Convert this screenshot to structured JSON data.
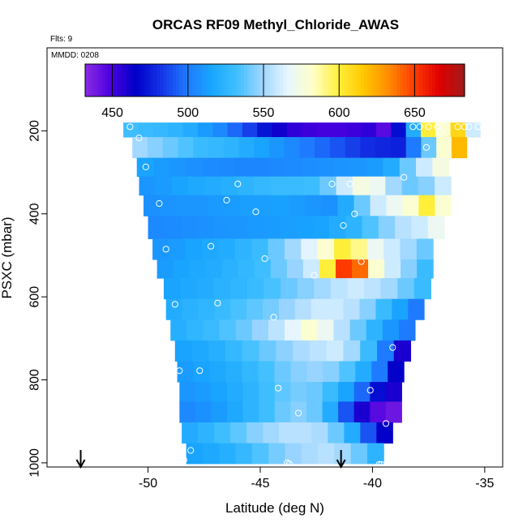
{
  "chart_data": {
    "type": "heatmap",
    "title": "ORCAS RF09 Methyl_Chloride_AWAS",
    "flts_note": "Flts: 9",
    "date_note": "MMDD: 0208",
    "xlabel": "Latitude (deg N)",
    "ylabel": "PSXC (mbar)",
    "xlim": [
      -54.5,
      -34.2
    ],
    "ylim": [
      1010,
      0
    ],
    "x_ticks": [
      -50,
      -45,
      -40,
      -35
    ],
    "x_tick_labels": [
      "-50",
      "-45",
      "-40",
      "-35"
    ],
    "y_ticks": [
      200,
      400,
      600,
      800,
      1000
    ],
    "y_tick_labels": [
      "200",
      "400",
      "600",
      "800",
      "1000"
    ],
    "colorbar": {
      "range": [
        432,
        683
      ],
      "ticks": [
        450,
        500,
        550,
        600,
        650
      ],
      "tick_labels": [
        "450",
        "500",
        "550",
        "600",
        "650"
      ],
      "colors": [
        "#8a2be2",
        "#4b00e0",
        "#0000c8",
        "#1433e6",
        "#1e78ff",
        "#19a6ff",
        "#3fbfff",
        "#9fd6ff",
        "#e6f6ff",
        "#ffffc8",
        "#fff03c",
        "#ffc800",
        "#ff8c00",
        "#ff3c00",
        "#e00000",
        "#a01a1a"
      ]
    },
    "layer_rows": [
      {
        "p": 190,
        "x0": -51.1,
        "x1": -35.2,
        "v": [
          532,
          530,
          528,
          525,
          520,
          512,
          505,
          495,
          485,
          472,
          462,
          455,
          452,
          450,
          450,
          452,
          455,
          445,
          470,
          520,
          600,
          580,
          610,
          560
        ]
      },
      {
        "p": 240,
        "x0": -50.7,
        "x1": -35.8,
        "v": [
          550,
          545,
          540,
          535,
          530,
          528,
          525,
          520,
          515,
          510,
          505,
          500,
          495,
          490,
          485,
          480,
          478,
          476,
          500,
          540,
          580,
          620
        ]
      },
      {
        "p": 290,
        "x0": -50.5,
        "x1": -36.6,
        "v": [
          515,
          512,
          510,
          508,
          506,
          505,
          504,
          504,
          505,
          506,
          507,
          508,
          509,
          510,
          512,
          520,
          540,
          560,
          575
        ]
      },
      {
        "p": 330,
        "x0": -50.4,
        "x1": -36.5,
        "v": [
          510,
          512,
          515,
          518,
          520,
          522,
          525,
          528,
          530,
          530,
          531,
          540,
          560,
          575,
          570,
          550,
          540,
          545,
          560
        ]
      },
      {
        "p": 380,
        "x0": -50.2,
        "x1": -36.5,
        "v": [
          508,
          509,
          510,
          510,
          511,
          512,
          513,
          513,
          514,
          512,
          510,
          508,
          520,
          540,
          560,
          570,
          580,
          600,
          580
        ]
      },
      {
        "p": 430,
        "x0": -50.0,
        "x1": -36.8,
        "v": [
          505,
          506,
          507,
          508,
          509,
          510,
          511,
          512,
          513,
          514,
          515,
          520,
          525,
          535,
          545,
          555,
          560,
          570
        ]
      },
      {
        "p": 490,
        "x0": -49.8,
        "x1": -37.3,
        "v": [
          510,
          512,
          515,
          518,
          520,
          525,
          530,
          540,
          550,
          565,
          580,
          600,
          590,
          570,
          560,
          550,
          540
        ]
      },
      {
        "p": 530,
        "x0": -49.6,
        "x1": -37.3,
        "v": [
          512,
          515,
          518,
          520,
          523,
          527,
          532,
          540,
          548,
          560,
          600,
          650,
          640,
          580,
          560,
          545,
          530
        ]
      },
      {
        "p": 580,
        "x0": -49.3,
        "x1": -37.4,
        "v": [
          515,
          518,
          520,
          523,
          526,
          530,
          534,
          540,
          545,
          550,
          556,
          560,
          556,
          550,
          540,
          530
        ]
      },
      {
        "p": 630,
        "x0": -49.2,
        "x1": -37.7,
        "v": [
          520,
          523,
          526,
          530,
          534,
          538,
          542,
          548,
          554,
          560,
          560,
          555,
          545,
          530,
          515,
          500
        ]
      },
      {
        "p": 680,
        "x0": -49.0,
        "x1": -38.1,
        "v": [
          522,
          526,
          530,
          535,
          540,
          548,
          556,
          566,
          580,
          570,
          555,
          540,
          525,
          510,
          500
        ]
      },
      {
        "p": 730,
        "x0": -48.8,
        "x1": -38.3,
        "v": [
          515,
          518,
          522,
          528,
          534,
          540,
          546,
          552,
          556,
          560,
          550,
          530,
          500,
          460
        ]
      },
      {
        "p": 780,
        "x0": -48.7,
        "x1": -38.6,
        "v": [
          512,
          515,
          518,
          522,
          527,
          533,
          540,
          545,
          548,
          545,
          535,
          520,
          500,
          465
        ]
      },
      {
        "p": 830,
        "x0": -48.6,
        "x1": -38.7,
        "v": [
          510,
          512,
          515,
          520,
          525,
          532,
          538,
          542,
          540,
          530,
          515,
          495,
          470,
          460
        ]
      },
      {
        "p": 875,
        "x0": -48.6,
        "x1": -38.7,
        "v": [
          505,
          508,
          512,
          518,
          525,
          532,
          540,
          545,
          540,
          520,
          490,
          460,
          445,
          440
        ]
      },
      {
        "p": 930,
        "x0": -48.5,
        "x1": -39.1,
        "v": [
          520,
          525,
          532,
          538,
          545,
          550,
          555,
          555,
          552,
          540,
          520,
          490,
          465
        ]
      },
      {
        "p": 975,
        "x0": -48.3,
        "x1": -39.5,
        "v": [
          515,
          518,
          522,
          528,
          535,
          542,
          548,
          552,
          555,
          550,
          540,
          525
        ]
      }
    ],
    "samples": [
      [
        -50.8,
        190
      ],
      [
        -50.4,
        217
      ],
      [
        -50.1,
        287
      ],
      [
        -49.5,
        375
      ],
      [
        -49.2,
        485
      ],
      [
        -48.8,
        618
      ],
      [
        -48.6,
        778
      ],
      [
        -48.5,
        975
      ],
      [
        -48.4,
        993
      ],
      [
        -48.1,
        970
      ],
      [
        -47.7,
        778
      ],
      [
        -47.2,
        478
      ],
      [
        -46.9,
        615
      ],
      [
        -46.5,
        367
      ],
      [
        -46.0,
        328
      ],
      [
        -45.2,
        395
      ],
      [
        -44.8,
        508
      ],
      [
        -44.4,
        649
      ],
      [
        -44.2,
        820
      ],
      [
        -43.8,
        1000
      ],
      [
        -43.7,
        1003
      ],
      [
        -43.3,
        880
      ],
      [
        -42.6,
        548
      ],
      [
        -41.8,
        328
      ],
      [
        -41.3,
        428
      ],
      [
        -41.0,
        328
      ],
      [
        -40.8,
        400
      ],
      [
        -40.5,
        515
      ],
      [
        -40.1,
        825
      ],
      [
        -39.7,
        1004
      ],
      [
        -39.6,
        1004
      ],
      [
        -39.4,
        905
      ],
      [
        -39.1,
        722
      ],
      [
        -38.6,
        312
      ],
      [
        -38.2,
        190
      ],
      [
        -37.9,
        190
      ],
      [
        -37.6,
        240
      ],
      [
        -37.5,
        190
      ],
      [
        -37.1,
        190
      ],
      [
        -37.0,
        203
      ],
      [
        -37.1,
        190
      ],
      [
        -36.2,
        190
      ],
      [
        -35.9,
        190
      ],
      [
        -35.7,
        190
      ],
      [
        -35.3,
        190
      ]
    ],
    "markers": [
      {
        "x": -53.0,
        "label": "down-arrow"
      },
      {
        "x": -41.4,
        "label": "down-arrow"
      }
    ]
  }
}
